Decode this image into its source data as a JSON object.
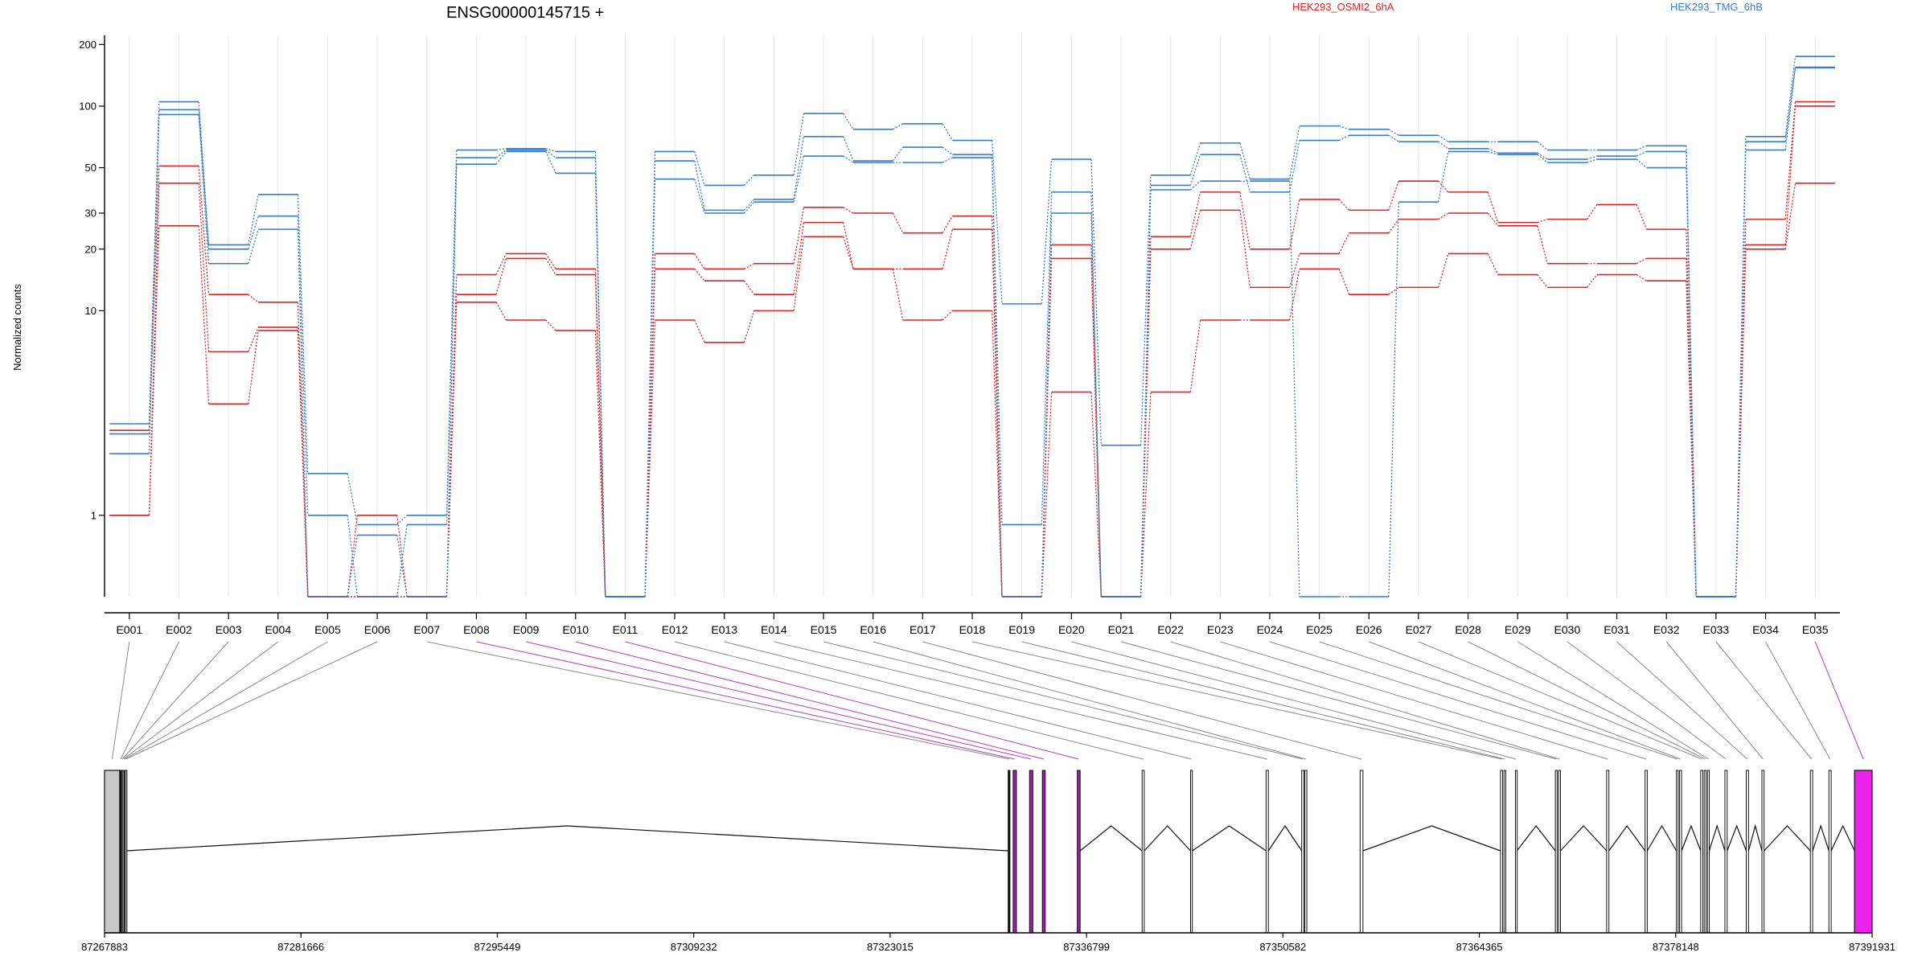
{
  "chart_data": {
    "type": "line",
    "title": "ENSG00000145715 +",
    "xlabel": "",
    "ylabel": "Normalized counts",
    "y_scale": "log",
    "ylim": [
      0.4,
      210
    ],
    "y_ticks": [
      1,
      10,
      20,
      30,
      50,
      100,
      200
    ],
    "categories": [
      "E001",
      "E002",
      "E003",
      "E004",
      "E005",
      "E006",
      "E007",
      "E008",
      "E009",
      "E010",
      "E011",
      "E012",
      "E013",
      "E014",
      "E015",
      "E016",
      "E017",
      "E018",
      "E019",
      "E020",
      "E021",
      "E022",
      "E023",
      "E024",
      "E025",
      "E026",
      "E027",
      "E028",
      "E029",
      "E030",
      "E031",
      "E032",
      "E033",
      "E034",
      "E035"
    ],
    "legend": [
      {
        "label": "HEK293_OSMI2_6hA",
        "color": "#d62728"
      },
      {
        "label": "HEK293_TMG_6hB",
        "color": "#3b7dbf"
      }
    ],
    "series": [
      {
        "group": "HEK293_OSMI2_6hA",
        "color": "#d62728",
        "values": [
          2.6,
          51,
          12,
          11,
          0.4,
          1.0,
          0.4,
          15,
          19,
          16,
          0.4,
          19,
          16,
          17,
          32,
          30,
          24,
          29,
          0.4,
          21,
          0.4,
          23,
          38,
          20,
          35,
          31,
          43,
          38,
          27,
          28,
          33,
          25,
          0.4,
          28,
          105
        ]
      },
      {
        "group": "HEK293_OSMI2_6hA",
        "color": "#d62728",
        "values": [
          1.0,
          42,
          6.3,
          8.3,
          0.4,
          0.4,
          0.4,
          12,
          18,
          15,
          0.4,
          16,
          14,
          12,
          27,
          16,
          16,
          25,
          0.4,
          18,
          0.4,
          20,
          31,
          13,
          19,
          24,
          28,
          30,
          26,
          17,
          17,
          18,
          0.4,
          21,
          100
        ]
      },
      {
        "group": "HEK293_OSMI2_6hA",
        "color": "#d62728",
        "values": [
          1.0,
          26,
          3.5,
          8.0,
          0.4,
          0.4,
          0.4,
          11,
          9,
          8,
          0.4,
          9,
          7,
          10,
          23,
          16,
          9,
          10,
          0.4,
          4,
          0.4,
          4,
          9,
          9,
          16,
          12,
          13,
          19,
          15,
          13,
          15,
          14,
          0.4,
          20,
          42
        ]
      },
      {
        "group": "HEK293_TMG_6hB",
        "color": "#3b7dbf",
        "values": [
          2.8,
          105,
          21,
          37,
          1.6,
          0.9,
          1.0,
          61,
          62,
          60,
          0.4,
          60,
          41,
          46,
          92,
          77,
          82,
          68,
          10.8,
          55,
          2.2,
          46,
          66,
          44,
          80,
          77,
          72,
          67,
          67,
          61,
          61,
          64,
          0.4,
          71,
          175
        ]
      },
      {
        "group": "HEK293_TMG_6hB",
        "color": "#3b7dbf",
        "values": [
          2.5,
          96,
          20,
          29,
          1.0,
          0.4,
          0.9,
          56,
          61,
          56,
          0.4,
          54,
          31,
          35,
          71,
          54,
          63,
          58,
          0.9,
          38,
          0.4,
          41,
          58,
          38,
          68,
          72,
          67,
          62,
          59,
          55,
          57,
          60,
          0.4,
          67,
          155
        ]
      },
      {
        "group": "HEK293_TMG_6hB",
        "color": "#3b7dbf",
        "values": [
          2.0,
          91,
          17,
          25,
          0.4,
          0.8,
          0.4,
          52,
          60,
          47,
          0.4,
          44,
          30,
          34,
          57,
          53,
          53,
          56,
          0.4,
          30,
          0.4,
          39,
          43,
          43,
          0.4,
          0.4,
          34,
          60,
          58,
          53,
          55,
          50,
          0.4,
          61,
          154
        ]
      }
    ],
    "gene_model": {
      "coordinate_ticks": [
        "87267883",
        "87281666",
        "87295449",
        "87309232",
        "87323015",
        "87336799",
        "87350582",
        "87364365",
        "87378148",
        "87391931"
      ],
      "exons": [
        {
          "id": "E001",
          "start": 87267883,
          "end": 87268950,
          "color": "#c8c8c8"
        },
        {
          "id": "E002",
          "start": 87268950,
          "end": 87269080,
          "color": "#111111"
        },
        {
          "id": "E003",
          "start": 87269080,
          "end": 87269170,
          "color": "#c8c8c8"
        },
        {
          "id": "E004",
          "start": 87269170,
          "end": 87269260,
          "color": "#c8c8c8"
        },
        {
          "id": "E005",
          "start": 87269260,
          "end": 87269330,
          "color": "#c8c8c8"
        },
        {
          "id": "E006",
          "start": 87269330,
          "end": 87269400,
          "color": "#c8c8c8"
        },
        {
          "id": "E007",
          "start": 87331300,
          "end": 87331420,
          "color": "#111111"
        },
        {
          "id": "E008",
          "start": 87331650,
          "end": 87331880,
          "color": "#9b1fa6"
        },
        {
          "id": "E009",
          "start": 87332800,
          "end": 87333030,
          "color": "#9b1fa6"
        },
        {
          "id": "E010",
          "start": 87333700,
          "end": 87333900,
          "color": "#9b1fa6"
        },
        {
          "id": "E011",
          "start": 87336150,
          "end": 87336350,
          "color": "#9b1fa6"
        },
        {
          "id": "E012",
          "start": 87340700,
          "end": 87340850,
          "color": "#ffffff"
        },
        {
          "id": "E013",
          "start": 87344100,
          "end": 87344220,
          "color": "#ffffff"
        },
        {
          "id": "E014",
          "start": 87349400,
          "end": 87349560,
          "color": "#ffffff"
        },
        {
          "id": "E015",
          "start": 87351900,
          "end": 87352050,
          "color": "#ffffff"
        },
        {
          "id": "E016",
          "start": 87352120,
          "end": 87352260,
          "color": "#ffffff"
        },
        {
          "id": "E017",
          "start": 87356000,
          "end": 87356200,
          "color": "#ffffff"
        },
        {
          "id": "E018",
          "start": 87365850,
          "end": 87366000,
          "color": "#ffffff"
        },
        {
          "id": "E019",
          "start": 87366100,
          "end": 87366220,
          "color": "#ffffff"
        },
        {
          "id": "E020",
          "start": 87366900,
          "end": 87367000,
          "color": "#ffffff"
        },
        {
          "id": "E021",
          "start": 87369700,
          "end": 87369830,
          "color": "#ffffff"
        },
        {
          "id": "E022",
          "start": 87369930,
          "end": 87370060,
          "color": "#ffffff"
        },
        {
          "id": "E023",
          "start": 87373300,
          "end": 87373460,
          "color": "#ffffff"
        },
        {
          "id": "E024",
          "start": 87376000,
          "end": 87376150,
          "color": "#ffffff"
        },
        {
          "id": "E025",
          "start": 87378200,
          "end": 87378320,
          "color": "#ffffff"
        },
        {
          "id": "E026",
          "start": 87378420,
          "end": 87378560,
          "color": "#ffffff"
        },
        {
          "id": "E027",
          "start": 87379900,
          "end": 87380050,
          "color": "#ffffff"
        },
        {
          "id": "E028",
          "start": 87380150,
          "end": 87380280,
          "color": "#ffffff"
        },
        {
          "id": "E029",
          "start": 87380380,
          "end": 87380500,
          "color": "#ffffff"
        },
        {
          "id": "E030",
          "start": 87381600,
          "end": 87381760,
          "color": "#ffffff"
        },
        {
          "id": "E031",
          "start": 87383100,
          "end": 87383260,
          "color": "#ffffff"
        },
        {
          "id": "E032",
          "start": 87384200,
          "end": 87384350,
          "color": "#ffffff"
        },
        {
          "id": "E033",
          "start": 87387600,
          "end": 87387760,
          "color": "#ffffff"
        },
        {
          "id": "E034",
          "start": 87388900,
          "end": 87389060,
          "color": "#ffffff"
        },
        {
          "id": "E035",
          "start": 87390700,
          "end": 87391931,
          "color": "#ee22ee"
        }
      ],
      "junctions": [
        [
          87269400,
          87331300
        ],
        [
          87336350,
          87340700
        ],
        [
          87340850,
          87344100
        ],
        [
          87344220,
          87349400
        ],
        [
          87349560,
          87351900
        ],
        [
          87356200,
          87365850
        ],
        [
          87367000,
          87369700
        ],
        [
          87370060,
          87373300
        ],
        [
          87373460,
          87376000
        ],
        [
          87376150,
          87378200
        ],
        [
          87378560,
          87379900
        ],
        [
          87380500,
          87381600
        ],
        [
          87381760,
          87383100
        ],
        [
          87383260,
          87384200
        ],
        [
          87384350,
          87387600
        ],
        [
          87387760,
          87388900
        ],
        [
          87389060,
          87390700
        ]
      ]
    }
  }
}
